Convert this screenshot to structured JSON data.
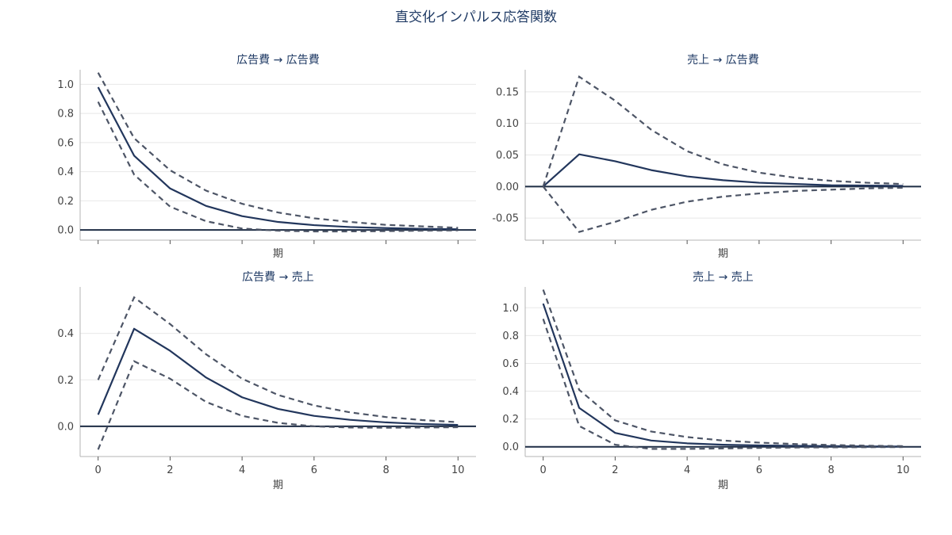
{
  "title": "直交化インパルス応答関数",
  "colors": {
    "irf": "#22365c",
    "band": "#4d5566",
    "zero": "#1e2d45",
    "title": "#1f3a64"
  },
  "chart_data": [
    {
      "type": "line",
      "title": "広告費 → 広告費",
      "xlabel": "期",
      "x": [
        0,
        1,
        2,
        3,
        4,
        5,
        6,
        7,
        8,
        9,
        10
      ],
      "xlim": [
        -0.5,
        10.5
      ],
      "ylim": [
        -0.07,
        1.1
      ],
      "yticks": [
        0.0,
        0.2,
        0.4,
        0.6,
        0.8,
        1.0
      ],
      "ytick_labels": [
        "0.0",
        "0.2",
        "0.4",
        "0.6",
        "0.8",
        "1.0"
      ],
      "xticks": [
        0,
        2,
        4,
        6,
        8,
        10
      ],
      "xtick_labels_shown": false,
      "grid": true,
      "series": [
        {
          "role": "irf",
          "values": [
            0.98,
            0.51,
            0.285,
            0.165,
            0.095,
            0.055,
            0.033,
            0.02,
            0.013,
            0.008,
            0.005
          ]
        },
        {
          "role": "upper",
          "values": [
            1.08,
            0.63,
            0.41,
            0.27,
            0.18,
            0.12,
            0.08,
            0.055,
            0.035,
            0.025,
            0.015
          ]
        },
        {
          "role": "lower",
          "values": [
            0.88,
            0.38,
            0.16,
            0.06,
            0.01,
            -0.005,
            -0.01,
            -0.01,
            -0.008,
            -0.005,
            -0.003
          ]
        }
      ]
    },
    {
      "type": "line",
      "title": "売上 → 広告費",
      "xlabel": "期",
      "x": [
        0,
        1,
        2,
        3,
        4,
        5,
        6,
        7,
        8,
        9,
        10
      ],
      "xlim": [
        -0.5,
        10.5
      ],
      "ylim": [
        -0.085,
        0.185
      ],
      "yticks": [
        -0.05,
        0.0,
        0.05,
        0.1,
        0.15
      ],
      "ytick_labels": [
        "-0.05",
        "0.00",
        "0.05",
        "0.10",
        "0.15"
      ],
      "xticks": [
        0,
        2,
        4,
        6,
        8,
        10
      ],
      "xtick_labels_shown": false,
      "grid": true,
      "series": [
        {
          "role": "irf",
          "values": [
            0.0,
            0.051,
            0.04,
            0.026,
            0.016,
            0.01,
            0.006,
            0.004,
            0.002,
            0.0015,
            0.001
          ]
        },
        {
          "role": "upper",
          "values": [
            0.0,
            0.174,
            0.136,
            0.09,
            0.056,
            0.035,
            0.022,
            0.014,
            0.009,
            0.006,
            0.004
          ]
        },
        {
          "role": "lower",
          "values": [
            0.0,
            -0.072,
            -0.056,
            -0.037,
            -0.024,
            -0.016,
            -0.011,
            -0.007,
            -0.005,
            -0.003,
            -0.002
          ]
        }
      ]
    },
    {
      "type": "line",
      "title": "広告費 → 売上",
      "xlabel": "期",
      "x": [
        0,
        1,
        2,
        3,
        4,
        5,
        6,
        7,
        8,
        9,
        10
      ],
      "xlim": [
        -0.5,
        10.5
      ],
      "ylim": [
        -0.13,
        0.6
      ],
      "yticks": [
        0.0,
        0.2,
        0.4
      ],
      "ytick_labels": [
        "0.0",
        "0.2",
        "0.4"
      ],
      "xticks": [
        0,
        2,
        4,
        6,
        8,
        10
      ],
      "xtick_labels": [
        "0",
        "2",
        "4",
        "6",
        "8",
        "10"
      ],
      "xtick_labels_shown": true,
      "grid": true,
      "series": [
        {
          "role": "irf",
          "values": [
            0.05,
            0.42,
            0.325,
            0.21,
            0.125,
            0.075,
            0.045,
            0.028,
            0.017,
            0.01,
            0.006
          ]
        },
        {
          "role": "upper",
          "values": [
            0.2,
            0.555,
            0.44,
            0.31,
            0.205,
            0.135,
            0.09,
            0.06,
            0.04,
            0.027,
            0.018
          ]
        },
        {
          "role": "lower",
          "values": [
            -0.1,
            0.28,
            0.205,
            0.105,
            0.045,
            0.015,
            0.0,
            -0.005,
            -0.006,
            -0.005,
            -0.004
          ]
        }
      ]
    },
    {
      "type": "line",
      "title": "売上 → 売上",
      "xlabel": "期",
      "x": [
        0,
        1,
        2,
        3,
        4,
        5,
        6,
        7,
        8,
        9,
        10
      ],
      "xlim": [
        -0.5,
        10.5
      ],
      "ylim": [
        -0.07,
        1.15
      ],
      "yticks": [
        0.0,
        0.2,
        0.4,
        0.6,
        0.8,
        1.0
      ],
      "ytick_labels": [
        "0.0",
        "0.2",
        "0.4",
        "0.6",
        "0.8",
        "1.0"
      ],
      "xticks": [
        0,
        2,
        4,
        6,
        8,
        10
      ],
      "xtick_labels": [
        "0",
        "2",
        "4",
        "6",
        "8",
        "10"
      ],
      "xtick_labels_shown": true,
      "grid": true,
      "series": [
        {
          "role": "irf",
          "values": [
            1.03,
            0.28,
            0.1,
            0.045,
            0.025,
            0.015,
            0.01,
            0.007,
            0.005,
            0.003,
            0.002
          ]
        },
        {
          "role": "upper",
          "values": [
            1.13,
            0.41,
            0.19,
            0.11,
            0.07,
            0.045,
            0.03,
            0.02,
            0.013,
            0.008,
            0.005
          ]
        },
        {
          "role": "lower",
          "values": [
            0.92,
            0.15,
            0.015,
            -0.015,
            -0.015,
            -0.012,
            -0.008,
            -0.005,
            -0.004,
            -0.003,
            -0.002
          ]
        }
      ]
    }
  ]
}
